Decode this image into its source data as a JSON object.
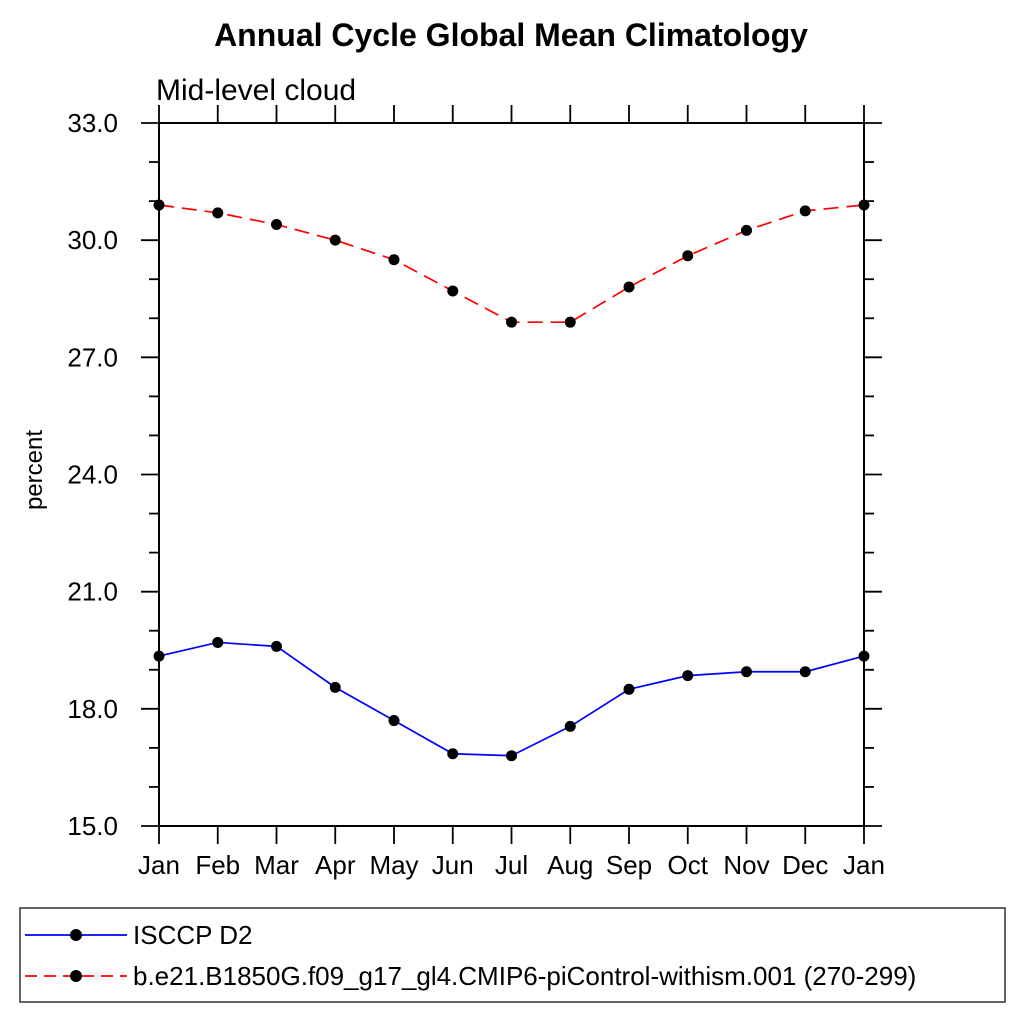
{
  "chart_data": {
    "type": "line",
    "title": "Annual Cycle Global Mean Climatology",
    "subtitle": "Mid-level cloud",
    "ylabel": "percent",
    "xlabel": "",
    "categories": [
      "Jan",
      "Feb",
      "Mar",
      "Apr",
      "May",
      "Jun",
      "Jul",
      "Aug",
      "Sep",
      "Oct",
      "Nov",
      "Dec",
      "Jan"
    ],
    "ylim": [
      15.0,
      33.0
    ],
    "y_ticks": [
      15.0,
      18.0,
      21.0,
      24.0,
      27.0,
      30.0,
      33.0
    ],
    "y_tick_labels": [
      "15.0",
      "18.0",
      "21.0",
      "24.0",
      "27.0",
      "30.0",
      "33.0"
    ],
    "minor_tick_step": 1.0,
    "grid": false,
    "legend_position": "bottom-left-box",
    "series": [
      {
        "name": "ISCCP D2",
        "color": "#0000ff",
        "line_style": "solid",
        "marker": "filled-circle",
        "marker_color": "#000000",
        "values": [
          19.35,
          19.7,
          19.6,
          18.55,
          17.7,
          16.85,
          16.8,
          17.55,
          18.5,
          18.85,
          18.95,
          18.95,
          19.35
        ]
      },
      {
        "name": "b.e21.B1850G.f09_g17_gl4.CMIP6-piControl-withism.001 (270-299)",
        "color": "#ff0000",
        "line_style": "dashed",
        "marker": "filled-circle",
        "marker_color": "#000000",
        "values": [
          30.9,
          30.7,
          30.4,
          30.0,
          29.5,
          28.7,
          27.9,
          27.9,
          28.8,
          29.6,
          30.25,
          30.75,
          30.9
        ]
      }
    ]
  }
}
